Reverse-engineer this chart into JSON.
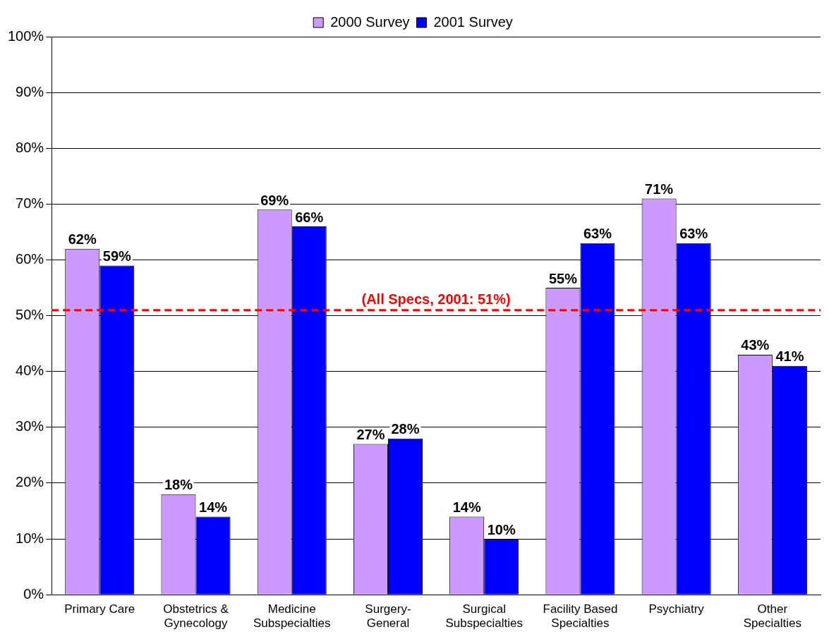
{
  "chart_data": {
    "type": "bar",
    "categories": [
      "Primary Care",
      "Obstetrics & Gynecology",
      "Medicine Subspecialties",
      "Surgery-General",
      "Surgical Subspecialties",
      "Facility Based Specialties",
      "Psychiatry",
      "Other Specialties"
    ],
    "series": [
      {
        "name": "2000 Survey",
        "color": "#cc99ff",
        "values": [
          62,
          18,
          69,
          27,
          14,
          55,
          71,
          43
        ],
        "value_labels": [
          "62%",
          "18%",
          "69%",
          "27%",
          "14%",
          "55%",
          "71%",
          "43%"
        ]
      },
      {
        "name": "2001 Survey",
        "color": "#0000ff",
        "values": [
          59,
          14,
          66,
          28,
          10,
          63,
          63,
          41
        ],
        "value_labels": [
          "59%",
          "14%",
          "66%",
          "28%",
          "10%",
          "63%",
          "63%",
          "41%"
        ]
      }
    ],
    "ylim": [
      0,
      100
    ],
    "yticks": [
      {
        "value": 0,
        "label": "0%"
      },
      {
        "value": 10,
        "label": "10%"
      },
      {
        "value": 20,
        "label": "20%"
      },
      {
        "value": 30,
        "label": "30%"
      },
      {
        "value": 40,
        "label": "40%"
      },
      {
        "value": 50,
        "label": "50%"
      },
      {
        "value": 60,
        "label": "60%"
      },
      {
        "value": 70,
        "label": "70%"
      },
      {
        "value": 80,
        "label": "80%"
      },
      {
        "value": 90,
        "label": "90%"
      },
      {
        "value": 100,
        "label": "100%"
      }
    ],
    "ref_lines": [
      {
        "axis": "y",
        "value": 51,
        "label": "(All Specs, 2001: 51%)",
        "color": "#ff0000",
        "line_style": "dashed"
      }
    ],
    "grid": "y",
    "legend": "top"
  }
}
